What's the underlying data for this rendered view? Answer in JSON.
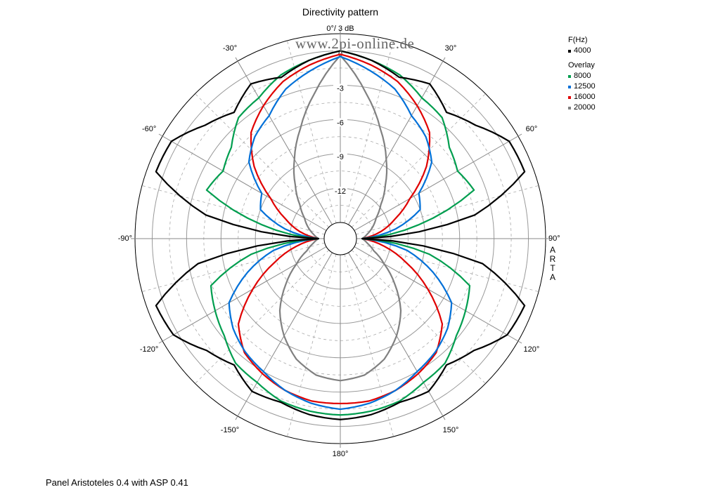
{
  "chart_data": {
    "type": "polar",
    "title": "Directivity pattern",
    "top_label": "0°/ 3 dB",
    "radial_unit": "dB",
    "radial_ticks": [
      "0",
      "-3",
      "-6",
      "-9",
      "-12"
    ],
    "radial_range_db": [
      -15,
      1.5
    ],
    "angle_ticks": [
      "0°",
      "30°",
      "60°",
      "90°",
      "120°",
      "150°",
      "180°",
      "-150°",
      "-120°",
      "-90°",
      "-60°",
      "-30°"
    ],
    "legend_title": "F(Hz)",
    "legend_overlay_title": "Overlay",
    "series": [
      {
        "name": "4000",
        "color": "#000000",
        "angles": [
          0,
          10,
          20,
          30,
          40,
          50,
          60,
          70,
          80,
          90,
          100,
          110,
          120,
          130,
          140,
          150,
          160,
          170,
          180
        ],
        "values_db": [
          0,
          -0.6,
          -1.4,
          -0.8,
          -2.0,
          -1.0,
          0.6,
          0.7,
          -4.5,
          -14.5,
          -3.8,
          0.7,
          0.4,
          -1.2,
          -2.0,
          -1.0,
          -1.2,
          -0.8,
          -0.6
        ]
      },
      {
        "name": "8000",
        "color": "#009e4f",
        "angles": [
          0,
          10,
          20,
          30,
          40,
          50,
          60,
          70,
          80,
          90,
          100,
          110,
          120,
          130,
          140,
          150,
          160,
          170,
          180
        ],
        "values_db": [
          0,
          -0.6,
          -1.2,
          -2.2,
          -2.6,
          -4.0,
          -4.6,
          -4.0,
          -9.5,
          -14.5,
          -8.5,
          -4.4,
          -3.8,
          -3.2,
          -2.2,
          -1.9,
          -1.3,
          -1.1,
          -1.0
        ]
      },
      {
        "name": "12500",
        "color": "#0070d8",
        "angles": [
          0,
          10,
          20,
          30,
          40,
          50,
          60,
          70,
          80,
          90,
          100,
          110,
          120,
          130,
          140,
          150,
          160,
          170,
          180
        ],
        "values_db": [
          -0.5,
          -1.5,
          -2.5,
          -4.0,
          -4.8,
          -6.0,
          -8.5,
          -9.0,
          -11.5,
          -14.5,
          -10.5,
          -7.8,
          -5.2,
          -4.2,
          -3.5,
          -3.0,
          -2.3,
          -1.8,
          -1.5
        ]
      },
      {
        "name": "16000",
        "color": "#e00000",
        "angles": [
          0,
          10,
          20,
          30,
          40,
          50,
          60,
          70,
          80,
          90,
          100,
          110,
          120,
          130,
          140,
          150,
          160,
          170,
          180
        ],
        "values_db": [
          -0.3,
          -1.0,
          -1.8,
          -3.0,
          -4.3,
          -6.6,
          -9.4,
          -11.3,
          -12.8,
          -14.5,
          -12.5,
          -10.3,
          -7.6,
          -4.8,
          -3.4,
          -2.8,
          -2.3,
          -2.0,
          -2.0
        ]
      },
      {
        "name": "20000",
        "color": "#808080",
        "angles": [
          0,
          10,
          20,
          30,
          40,
          50,
          60,
          70,
          80,
          90,
          100,
          110,
          120,
          130,
          140,
          150,
          160,
          170,
          180
        ],
        "values_db": [
          -0.4,
          -3.5,
          -6.2,
          -8.4,
          -10.3,
          -11.8,
          -12.8,
          -13.4,
          -14.0,
          -14.5,
          -14.0,
          -13.3,
          -12.0,
          -10.2,
          -8.2,
          -6.6,
          -5.2,
          -4.3,
          -4.0
        ]
      }
    ]
  },
  "watermark": "www.2pi-online.de",
  "side_label": [
    "A",
    "R",
    "T",
    "A"
  ],
  "footer": "Panel Aristoteles 0.4 with ASP 0.41"
}
